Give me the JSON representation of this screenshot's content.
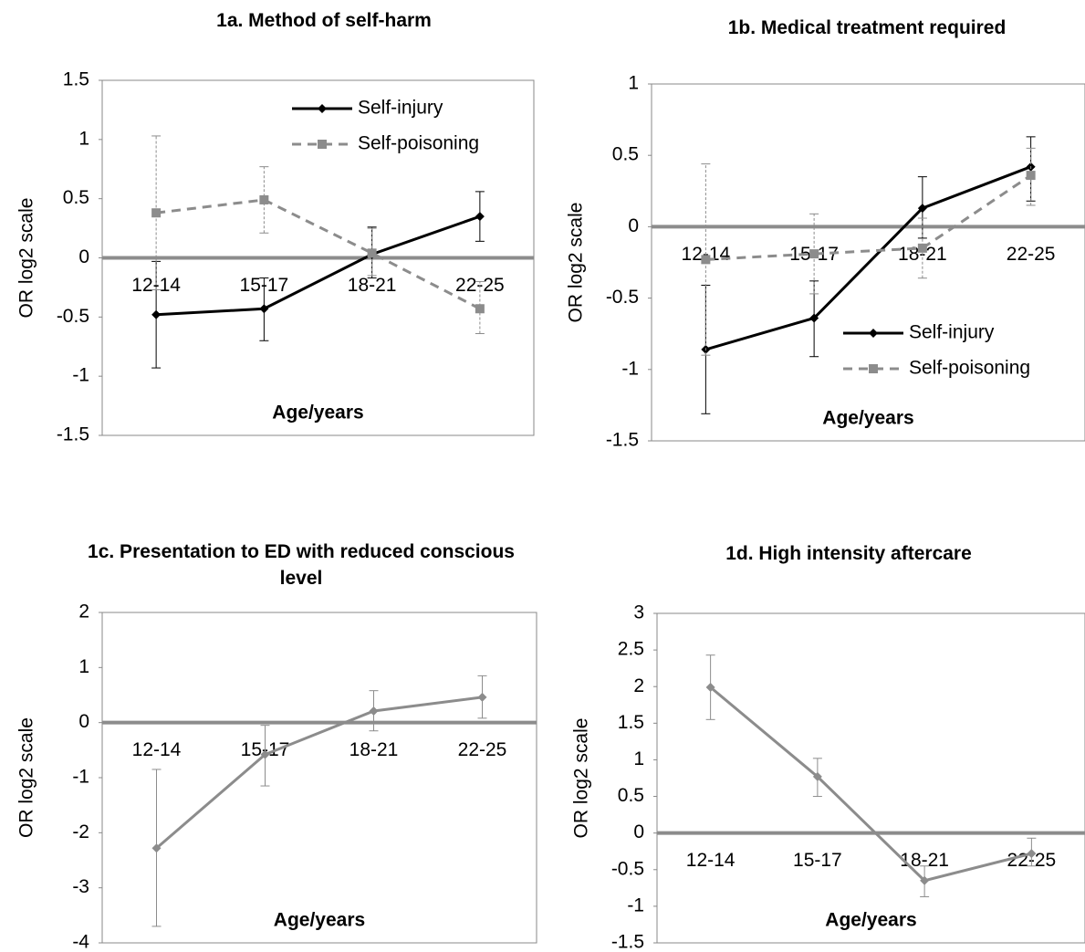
{
  "chart_data": [
    {
      "type": "line",
      "title": "1a. Method of self-harm",
      "xlabel": "Age/years",
      "ylabel": "OR log2 scale",
      "categories": [
        "12-14",
        "15-17",
        "18-21",
        "22-25"
      ],
      "ylim": [
        -1.5,
        1.5
      ],
      "yticks": [
        -1.5,
        -1,
        -0.5,
        0,
        0.5,
        1,
        1.5
      ],
      "legend": "upper right",
      "series": [
        {
          "name": "Self-injury",
          "color": "#000000",
          "dash": false,
          "marker": "diamond",
          "values": [
            -0.48,
            -0.43,
            0.03,
            0.35
          ],
          "lower": [
            -0.93,
            -0.7,
            -0.17,
            0.14
          ],
          "upper": [
            -0.03,
            -0.17,
            0.26,
            0.56
          ]
        },
        {
          "name": "Self-poisoning",
          "color": "#8c8c8c",
          "dash": true,
          "marker": "square",
          "values": [
            0.38,
            0.49,
            0.04,
            -0.43
          ],
          "lower": [
            -0.27,
            0.21,
            -0.15,
            -0.64
          ],
          "upper": [
            1.03,
            0.77,
            0.25,
            -0.2
          ]
        }
      ]
    },
    {
      "type": "line",
      "title": "1b. Medical treatment required",
      "xlabel": "Age/years",
      "ylabel": "OR log2 scale",
      "categories": [
        "12-14",
        "15-17",
        "18-21",
        "22-25"
      ],
      "ylim": [
        -1.5,
        1
      ],
      "yticks": [
        -1.5,
        -1,
        -0.5,
        0,
        0.5,
        1
      ],
      "legend": "lower right",
      "series": [
        {
          "name": "Self-injury",
          "color": "#000000",
          "dash": false,
          "marker": "diamond",
          "values": [
            -0.86,
            -0.64,
            0.13,
            0.42
          ],
          "lower": [
            -1.31,
            -0.91,
            -0.08,
            0.18
          ],
          "upper": [
            -0.41,
            -0.38,
            0.35,
            0.63
          ]
        },
        {
          "name": "Self-poisoning",
          "color": "#8c8c8c",
          "dash": true,
          "marker": "square",
          "values": [
            -0.23,
            -0.19,
            -0.15,
            0.36
          ],
          "lower": [
            -0.9,
            -0.47,
            -0.36,
            0.15
          ],
          "upper": [
            0.44,
            0.09,
            0.06,
            0.55
          ]
        }
      ]
    },
    {
      "type": "line",
      "title": "1c. Presentation to ED with reduced conscious level",
      "xlabel": "Age/years",
      "ylabel": "OR log2 scale",
      "categories": [
        "12-14",
        "15-17",
        "18-21",
        "22-25"
      ],
      "ylim": [
        -4,
        2
      ],
      "yticks": [
        -4,
        -3,
        -2,
        -1,
        0,
        1,
        2
      ],
      "series": [
        {
          "color": "#8c8c8c",
          "dash": false,
          "marker": "diamond",
          "values": [
            -2.28,
            -0.58,
            0.21,
            0.46
          ],
          "lower": [
            -3.7,
            -1.15,
            -0.15,
            0.08
          ],
          "upper": [
            -0.85,
            -0.05,
            0.58,
            0.85
          ]
        }
      ]
    },
    {
      "type": "line",
      "title": "1d. High intensity aftercare",
      "xlabel": "Age/years",
      "ylabel": "OR log2 scale",
      "categories": [
        "12-14",
        "15-17",
        "18-21",
        "22-25"
      ],
      "ylim": [
        -1.5,
        3
      ],
      "yticks": [
        -1.5,
        -1,
        -0.5,
        0,
        0.5,
        1,
        1.5,
        2,
        2.5,
        3
      ],
      "series": [
        {
          "color": "#8c8c8c",
          "dash": false,
          "marker": "diamond",
          "values": [
            1.99,
            0.77,
            -0.65,
            -0.28
          ],
          "lower": [
            1.55,
            0.5,
            -0.87,
            -0.45
          ],
          "upper": [
            2.43,
            1.02,
            -0.45,
            -0.07
          ]
        }
      ]
    }
  ]
}
